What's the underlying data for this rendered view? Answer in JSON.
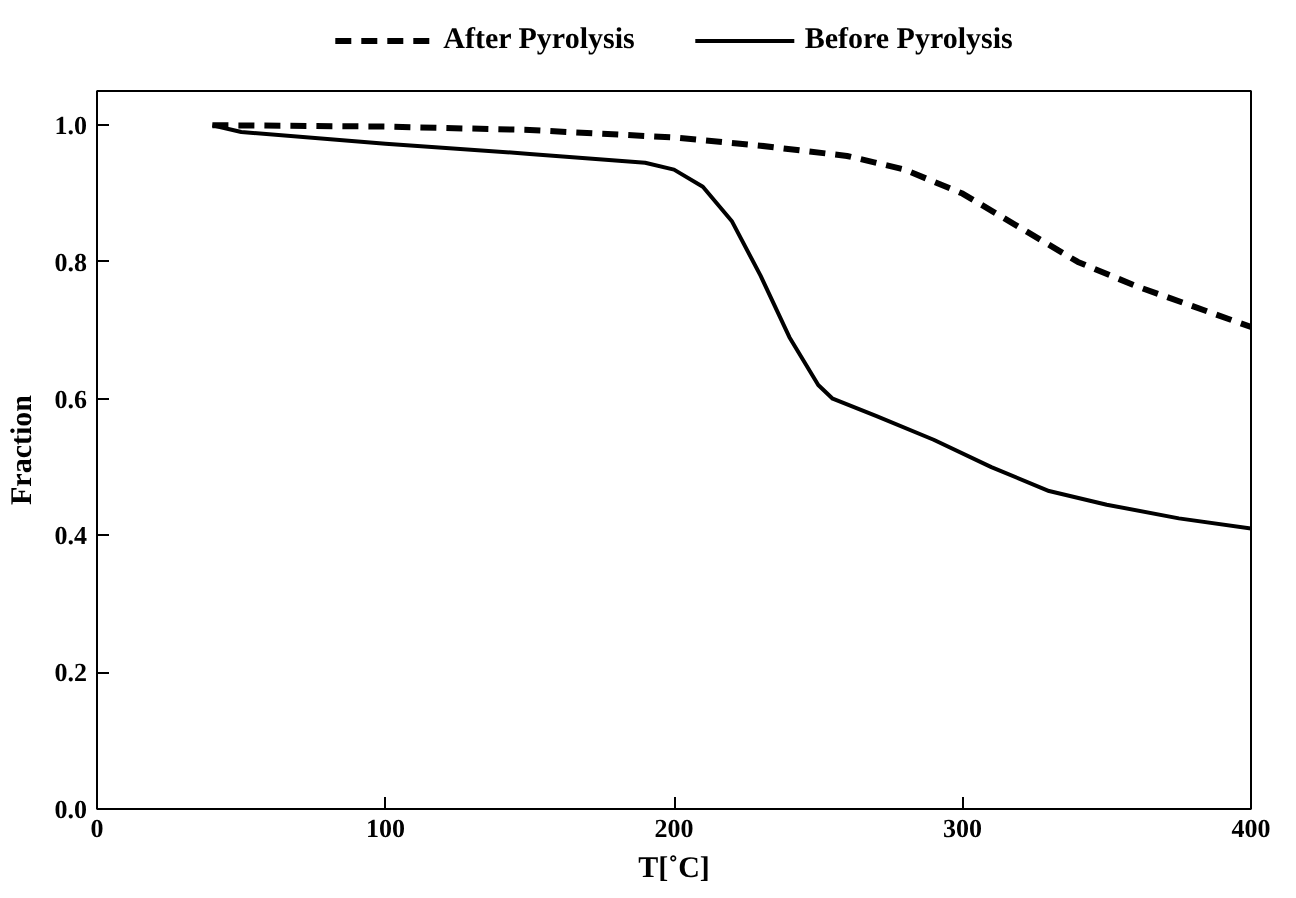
{
  "chart_data": {
    "type": "line",
    "xlabel": "T[˚C]",
    "ylabel": "Fraction",
    "xlim": [
      0,
      400
    ],
    "xticks": [
      0,
      100,
      200,
      300,
      400
    ],
    "ylim": [
      0,
      1.05
    ],
    "yticks": [
      {
        "value": 0,
        "label": "0.0"
      },
      0.2,
      0.4,
      0.6,
      0.8,
      {
        "value": 1,
        "label": "1.0"
      }
    ],
    "grid": false,
    "legend": "top",
    "marker": "none",
    "series": [
      {
        "name": "After Pyrolysis",
        "color": "#000000",
        "line_style": "dashed",
        "x": [
          40,
          100,
          150,
          200,
          230,
          260,
          280,
          300,
          320,
          340,
          360,
          380,
          400
        ],
        "values": [
          1.0,
          0.998,
          0.993,
          0.982,
          0.97,
          0.955,
          0.935,
          0.9,
          0.85,
          0.8,
          0.765,
          0.735,
          0.705
        ]
      },
      {
        "name": "Before Pyrolysis",
        "color": "#000000",
        "line_style": "solid",
        "x": [
          40,
          50,
          100,
          150,
          190,
          200,
          210,
          220,
          230,
          240,
          250,
          255,
          270,
          290,
          310,
          330,
          350,
          375,
          400
        ],
        "values": [
          1.0,
          0.99,
          0.973,
          0.958,
          0.945,
          0.935,
          0.91,
          0.86,
          0.78,
          0.69,
          0.62,
          0.6,
          0.575,
          0.54,
          0.5,
          0.465,
          0.445,
          0.425,
          0.41
        ]
      }
    ]
  }
}
